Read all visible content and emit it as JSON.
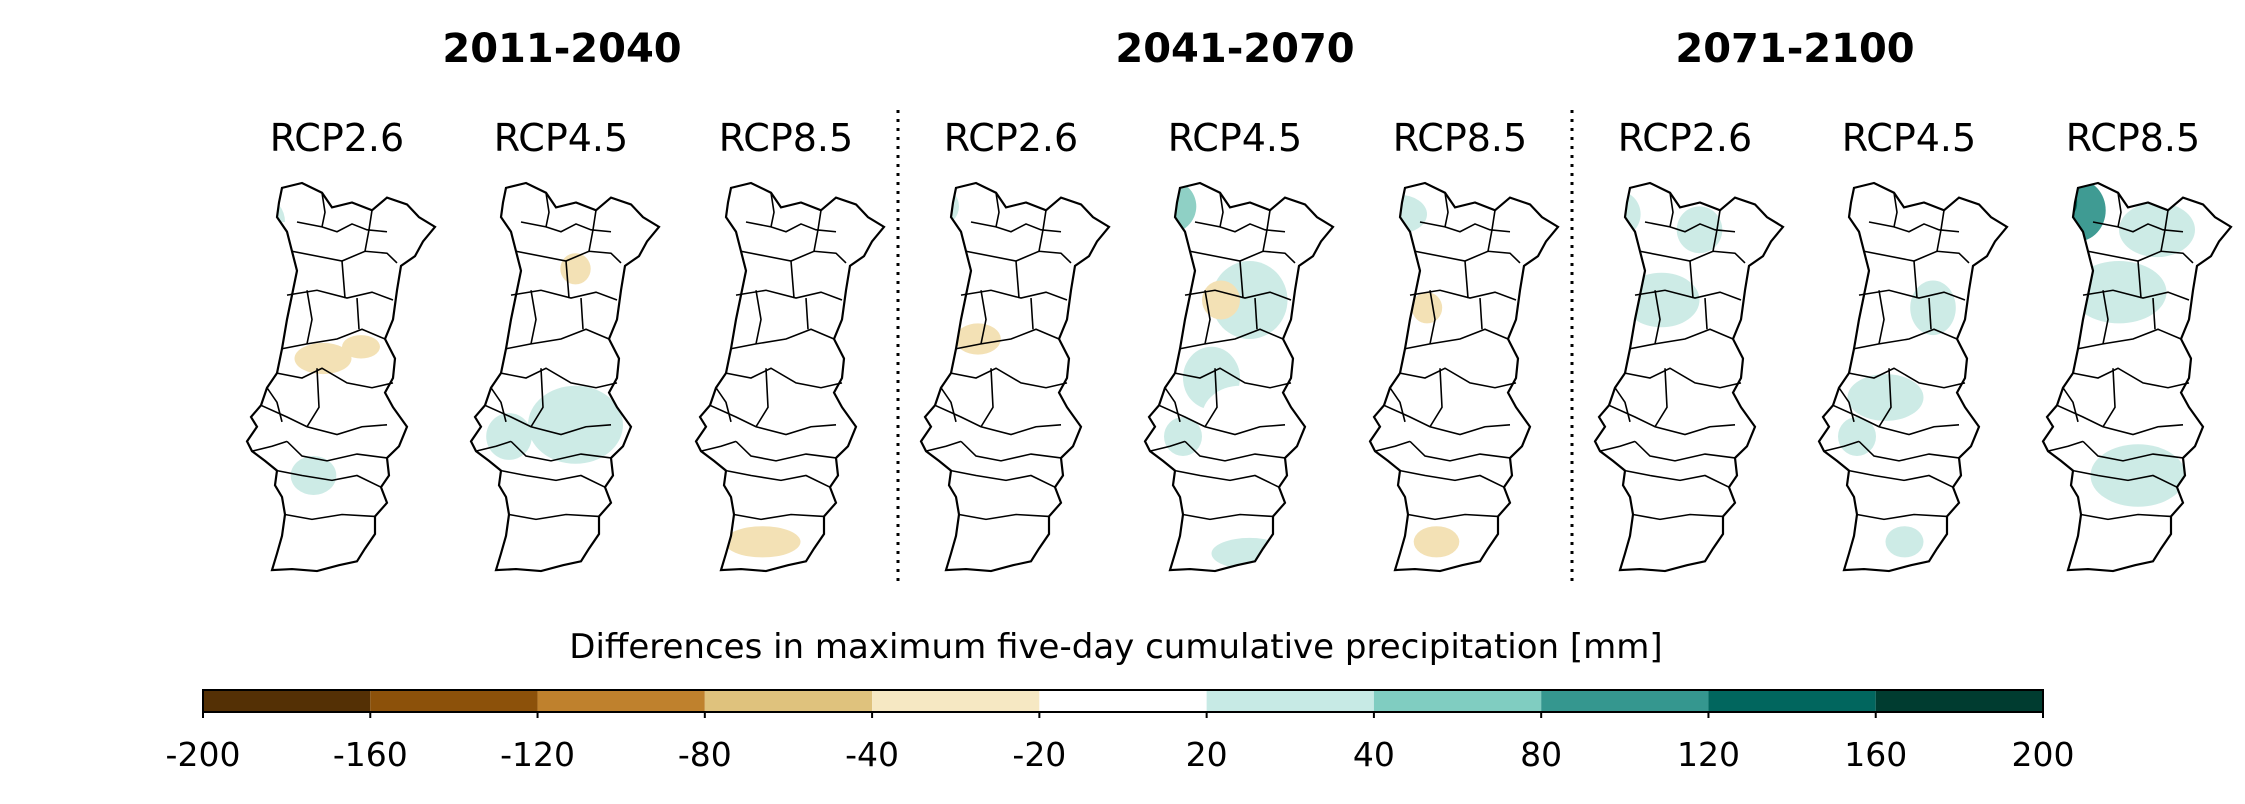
{
  "periods": [
    {
      "label": "2011-2040",
      "scenarios": [
        "RCP2.6",
        "RCP4.5",
        "RCP8.5"
      ]
    },
    {
      "label": "2041-2070",
      "scenarios": [
        "RCP2.6",
        "RCP4.5",
        "RCP8.5"
      ]
    },
    {
      "label": "2071-2100",
      "scenarios": [
        "RCP2.6",
        "RCP4.5",
        "RCP8.5"
      ]
    }
  ],
  "colorbar": {
    "title": "Differences in maximum five-day cumulative precipitation [mm]",
    "ticks": [
      "-200",
      "-160",
      "-120",
      "-80",
      "-40",
      "-20",
      "20",
      "40",
      "80",
      "120",
      "160",
      "200"
    ],
    "colors": [
      "#543005",
      "#8c510a",
      "#bf812d",
      "#dfc27d",
      "#f6e8c3",
      "#ffffff",
      "#c7eae5",
      "#80cdc1",
      "#35978f",
      "#01665e",
      "#003c30"
    ]
  },
  "maps": [
    {
      "period": "2011-2040",
      "scenario": "RCP2.6",
      "blobs": [
        [
          0.1,
          0.1,
          0.1,
          0.06,
          2
        ],
        [
          0.2,
          0.15,
          0.12,
          0.05,
          1
        ],
        [
          0.55,
          0.2,
          0.08,
          0.05,
          1
        ],
        [
          0.4,
          0.45,
          0.15,
          0.04,
          -1
        ],
        [
          0.6,
          0.42,
          0.1,
          0.03,
          -1
        ],
        [
          0.5,
          0.65,
          0.25,
          0.08,
          1
        ],
        [
          0.35,
          0.75,
          0.12,
          0.05,
          2
        ]
      ]
    },
    {
      "period": "2011-2040",
      "scenario": "RCP4.5",
      "blobs": [
        [
          0.3,
          0.12,
          0.12,
          0.05,
          1
        ],
        [
          0.25,
          0.25,
          0.1,
          0.05,
          1
        ],
        [
          0.55,
          0.22,
          0.08,
          0.04,
          -1
        ],
        [
          0.4,
          0.45,
          0.1,
          0.04,
          1
        ],
        [
          0.55,
          0.62,
          0.25,
          0.1,
          2
        ],
        [
          0.2,
          0.65,
          0.12,
          0.06,
          2
        ],
        [
          0.3,
          0.9,
          0.1,
          0.05,
          1
        ]
      ]
    },
    {
      "period": "2011-2040",
      "scenario": "RCP8.5",
      "blobs": [
        [
          0.5,
          0.15,
          0.25,
          0.06,
          1
        ],
        [
          0.7,
          0.25,
          0.1,
          0.06,
          1
        ],
        [
          0.5,
          0.35,
          0.2,
          0.06,
          1
        ],
        [
          0.6,
          0.55,
          0.15,
          0.05,
          1
        ],
        [
          0.4,
          0.75,
          0.15,
          0.05,
          1
        ],
        [
          0.35,
          0.92,
          0.2,
          0.04,
          -1
        ]
      ]
    },
    {
      "period": "2041-2070",
      "scenario": "RCP2.6",
      "blobs": [
        [
          0.1,
          0.06,
          0.1,
          0.05,
          2
        ],
        [
          0.3,
          0.15,
          0.15,
          0.06,
          1
        ],
        [
          0.45,
          0.3,
          0.2,
          0.07,
          1
        ],
        [
          0.3,
          0.4,
          0.12,
          0.04,
          -1
        ],
        [
          0.5,
          0.72,
          0.2,
          0.08,
          1
        ],
        [
          0.25,
          0.82,
          0.1,
          0.04,
          1
        ]
      ]
    },
    {
      "period": "2041-2070",
      "scenario": "RCP4.5",
      "blobs": [
        [
          0.12,
          0.06,
          0.15,
          0.07,
          3
        ],
        [
          0.55,
          0.3,
          0.2,
          0.1,
          2
        ],
        [
          0.35,
          0.5,
          0.15,
          0.08,
          2
        ],
        [
          0.5,
          0.6,
          0.2,
          0.08,
          1
        ],
        [
          0.2,
          0.65,
          0.1,
          0.05,
          2
        ],
        [
          0.55,
          0.95,
          0.2,
          0.04,
          2
        ],
        [
          0.4,
          0.3,
          0.1,
          0.05,
          -1
        ]
      ]
    },
    {
      "period": "2041-2070",
      "scenario": "RCP8.5",
      "blobs": [
        [
          0.15,
          0.08,
          0.15,
          0.05,
          2
        ],
        [
          0.4,
          0.3,
          0.15,
          0.06,
          1
        ],
        [
          0.3,
          0.32,
          0.08,
          0.04,
          -1
        ],
        [
          0.4,
          0.55,
          0.15,
          0.05,
          1
        ],
        [
          0.35,
          0.92,
          0.12,
          0.04,
          -1
        ]
      ]
    },
    {
      "period": "2071-2100",
      "scenario": "RCP2.6",
      "blobs": [
        [
          0.12,
          0.08,
          0.12,
          0.06,
          2
        ],
        [
          0.55,
          0.12,
          0.12,
          0.06,
          2
        ],
        [
          0.35,
          0.3,
          0.2,
          0.07,
          2
        ],
        [
          0.3,
          0.5,
          0.15,
          0.05,
          1
        ],
        [
          0.4,
          0.9,
          0.1,
          0.04,
          1
        ]
      ]
    },
    {
      "period": "2071-2100",
      "scenario": "RCP4.5",
      "blobs": [
        [
          0.3,
          0.1,
          0.15,
          0.06,
          1
        ],
        [
          0.6,
          0.32,
          0.12,
          0.07,
          2
        ],
        [
          0.35,
          0.55,
          0.2,
          0.06,
          2
        ],
        [
          0.2,
          0.65,
          0.1,
          0.05,
          2
        ],
        [
          0.4,
          0.8,
          0.25,
          0.08,
          1
        ],
        [
          0.45,
          0.92,
          0.1,
          0.04,
          2
        ]
      ]
    },
    {
      "period": "2071-2100",
      "scenario": "RCP8.5",
      "blobs": [
        [
          0.18,
          0.07,
          0.15,
          0.08,
          4
        ],
        [
          0.12,
          0.05,
          0.06,
          0.04,
          5
        ],
        [
          0.6,
          0.12,
          0.2,
          0.07,
          2
        ],
        [
          0.4,
          0.28,
          0.25,
          0.08,
          2
        ],
        [
          0.25,
          0.45,
          0.12,
          0.05,
          1
        ],
        [
          0.5,
          0.75,
          0.25,
          0.08,
          2
        ],
        [
          0.3,
          0.9,
          0.1,
          0.05,
          1
        ]
      ]
    }
  ]
}
